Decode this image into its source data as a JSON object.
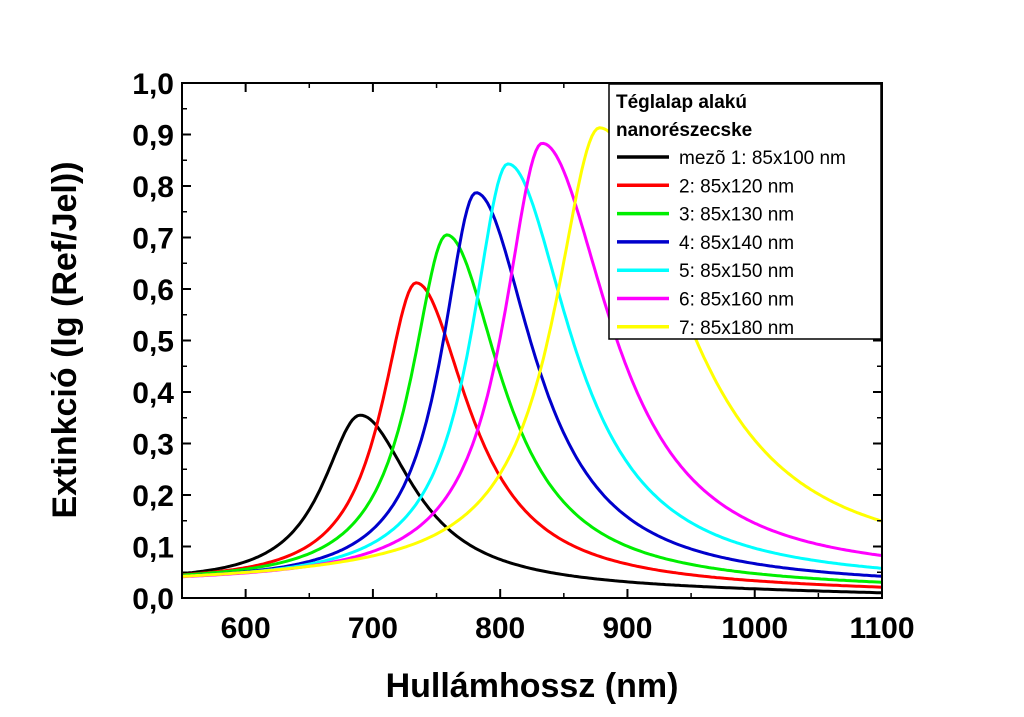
{
  "chart_data": {
    "type": "line",
    "title": "",
    "xlabel": "Hullámhossz (nm)",
    "ylabel": "Extinkció (lg (Ref/Jel))",
    "xlim": [
      550,
      1100
    ],
    "ylim": [
      0.0,
      1.0
    ],
    "x_ticks": [
      600,
      700,
      800,
      900,
      1000,
      1100
    ],
    "x_tick_labels": [
      "600",
      "700",
      "800",
      "900",
      "1000",
      "1100"
    ],
    "y_ticks": [
      0.0,
      0.1,
      0.2,
      0.3,
      0.4,
      0.5,
      0.6,
      0.7,
      0.8,
      0.9,
      1.0
    ],
    "y_tick_labels": [
      "0,0",
      "0,1",
      "0,2",
      "0,3",
      "0,4",
      "0,5",
      "0,6",
      "0,7",
      "0,8",
      "0,9",
      "1,0"
    ],
    "grid": false,
    "legend": {
      "placement": "top-right",
      "title_lines": [
        "Téglalap alakú",
        "nanorészecske"
      ]
    },
    "series": [
      {
        "name": "mezõ 1: 85x100 nm",
        "color": "#000000",
        "peak_x": 690,
        "peak_y": 0.355,
        "width_left": 36,
        "width_right": 50,
        "base": 0.027,
        "tail_end": 0.005
      },
      {
        "name": "2: 85x120 nm",
        "color": "#ff0000",
        "peak_x": 734,
        "peak_y": 0.612,
        "width_left": 33,
        "width_right": 50,
        "base": 0.027,
        "tail_end": 0.01
      },
      {
        "name": "3: 85x130 nm",
        "color": "#00ee00",
        "peak_x": 758,
        "peak_y": 0.705,
        "width_left": 34,
        "width_right": 52,
        "base": 0.027,
        "tail_end": 0.015
      },
      {
        "name": "4: 85x140 nm",
        "color": "#0000cc",
        "peak_x": 781,
        "peak_y": 0.787,
        "width_left": 33,
        "width_right": 55,
        "base": 0.027,
        "tail_end": 0.02
      },
      {
        "name": "5: 85x150 nm",
        "color": "#00ffff",
        "peak_x": 806,
        "peak_y": 0.843,
        "width_left": 35,
        "width_right": 60,
        "base": 0.027,
        "tail_end": 0.025
      },
      {
        "name": "6: 85x160 nm",
        "color": "#ff00ff",
        "peak_x": 833,
        "peak_y": 0.883,
        "width_left": 37,
        "width_right": 65,
        "base": 0.027,
        "tail_end": 0.035
      },
      {
        "name": "7: 85x180 nm",
        "color": "#ffff00",
        "peak_x": 878,
        "peak_y": 0.913,
        "width_left": 43,
        "width_right": 80,
        "base": 0.027,
        "tail_end": 0.05
      }
    ]
  }
}
